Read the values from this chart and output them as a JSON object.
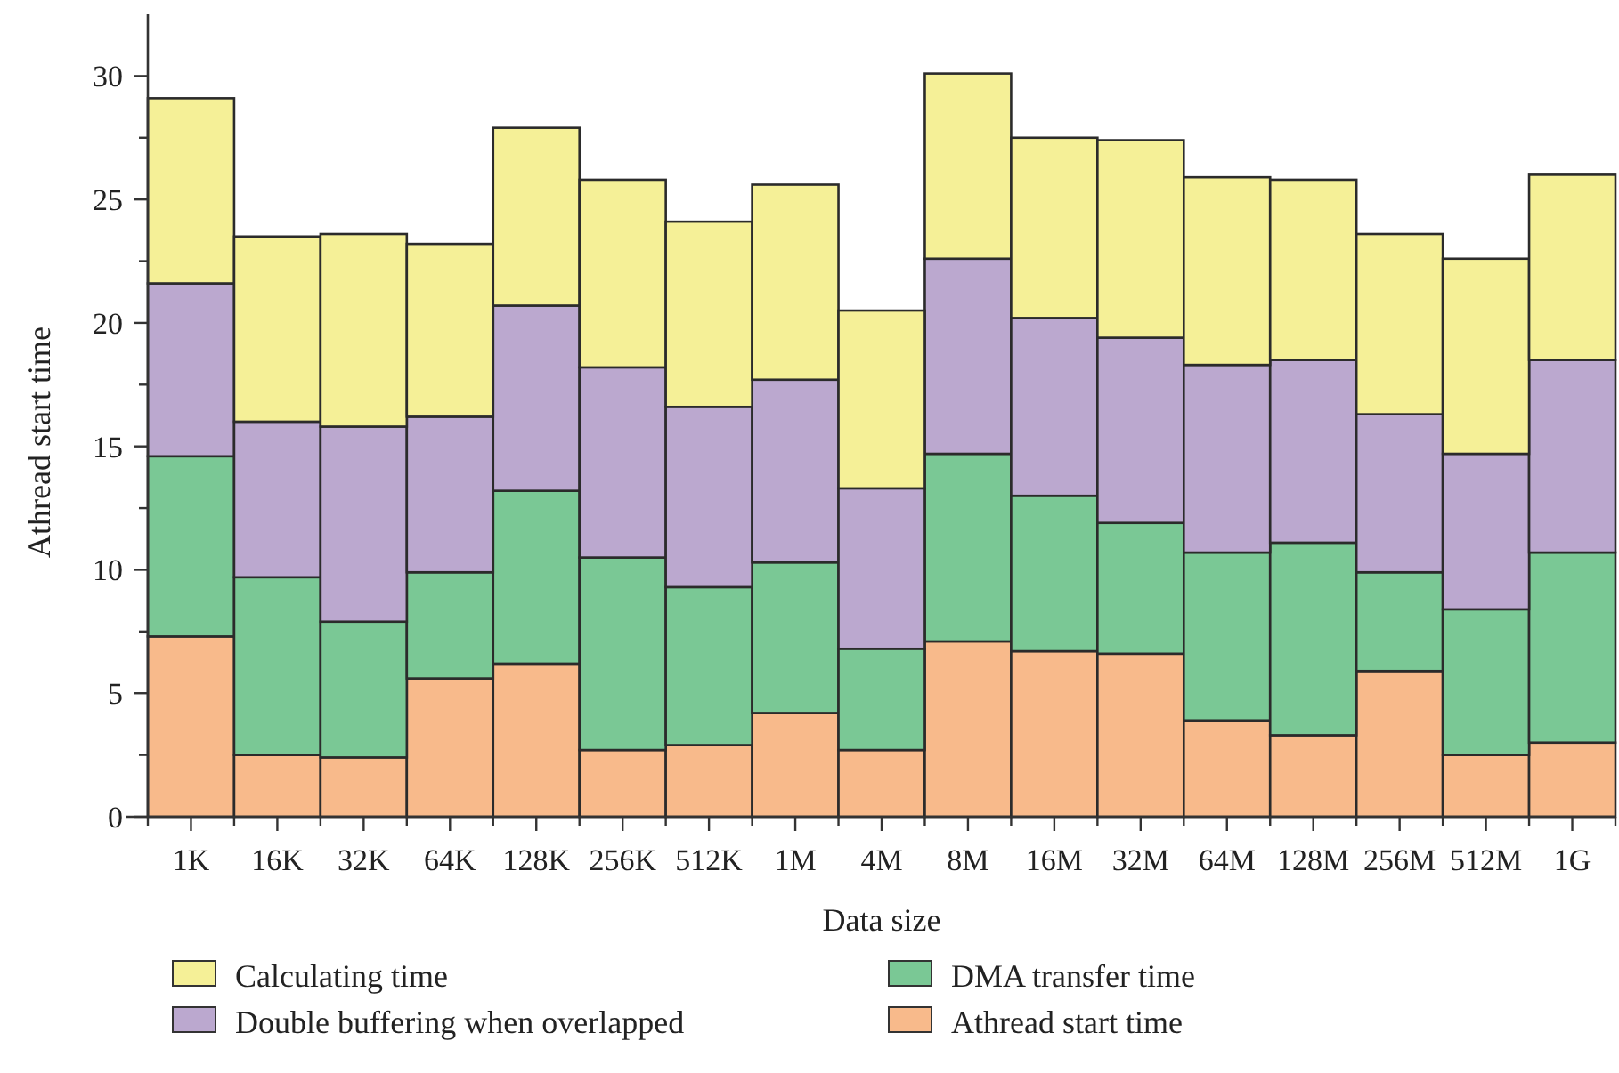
{
  "chart_data": {
    "type": "bar",
    "stacked": true,
    "xlabel": "Data size",
    "ylabel": "Athread start time",
    "categories": [
      "1K",
      "16K",
      "32K",
      "64K",
      "128K",
      "256K",
      "512K",
      "1M",
      "4M",
      "8M",
      "16M",
      "32M",
      "64M",
      "128M",
      "256M",
      "512M",
      "1G"
    ],
    "series": [
      {
        "name": "Athread start time",
        "color": "#f8ba8b",
        "values": [
          7.3,
          2.5,
          2.4,
          5.6,
          6.2,
          2.7,
          2.9,
          4.2,
          2.7,
          7.1,
          6.7,
          6.6,
          3.9,
          3.3,
          5.9,
          2.5,
          3.0
        ]
      },
      {
        "name": "DMA transfer time",
        "color": "#7ac895",
        "values": [
          7.3,
          7.2,
          5.5,
          4.3,
          7.0,
          7.8,
          6.4,
          6.1,
          4.1,
          7.6,
          6.3,
          5.3,
          6.8,
          7.8,
          4.0,
          5.9,
          7.7
        ]
      },
      {
        "name": "Double buffering when overlapped",
        "color": "#bba8cf",
        "values": [
          7.0,
          6.3,
          7.9,
          6.3,
          7.5,
          7.7,
          7.3,
          7.4,
          6.5,
          7.9,
          7.2,
          7.5,
          7.6,
          7.4,
          6.4,
          6.3,
          7.8
        ]
      },
      {
        "name": "Calculating time",
        "color": "#f5f097",
        "values": [
          7.5,
          7.5,
          7.8,
          7.0,
          7.2,
          7.6,
          7.5,
          7.9,
          7.2,
          7.5,
          7.3,
          8.0,
          7.6,
          7.3,
          7.3,
          7.9,
          7.5
        ]
      }
    ],
    "ylim": [
      0,
      32.5
    ],
    "yticks": [
      0,
      {
        "value": 2.5,
        "label": null
      },
      5,
      {
        "value": 7.5,
        "label": null
      },
      10,
      {
        "value": 12.5,
        "label": null
      },
      15,
      {
        "value": 17.5,
        "label": null
      },
      20,
      {
        "value": 22.5,
        "label": null
      },
      25,
      {
        "value": 27.5,
        "label": null
      },
      30
    ],
    "grid": false,
    "legend": "bottom"
  }
}
